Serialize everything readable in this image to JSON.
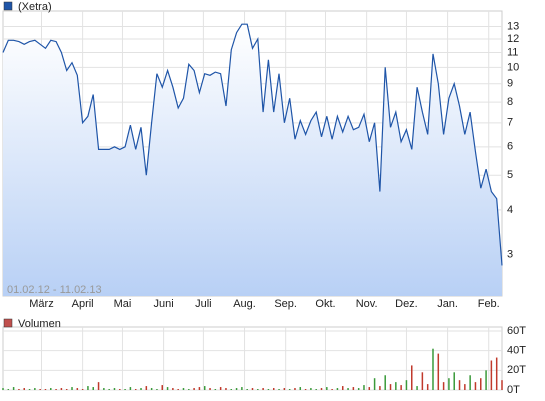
{
  "chart_data": [
    {
      "type": "line",
      "log_scale": true,
      "grid": true,
      "date_range": "01.02.12 - 11.02.13",
      "x": [
        "01.02.12",
        "05.02.12",
        "09.02.12",
        "13.02.12",
        "17.02.12",
        "21.02.12",
        "25.02.12",
        "29.02.12",
        "04.03.12",
        "08.03.12",
        "12.03.12",
        "16.03.12",
        "20.03.12",
        "24.03.12",
        "28.03.12",
        "01.04.12",
        "05.04.12",
        "09.04.12",
        "13.04.12",
        "17.04.12",
        "21.04.12",
        "25.04.12",
        "29.04.12",
        "03.05.12",
        "07.05.12",
        "11.05.12",
        "15.05.12",
        "19.05.12",
        "23.05.12",
        "27.05.12",
        "31.05.12",
        "04.06.12",
        "08.06.12",
        "12.06.12",
        "16.06.12",
        "20.06.12",
        "24.06.12",
        "28.06.12",
        "02.07.12",
        "06.07.12",
        "10.07.12",
        "14.07.12",
        "18.07.12",
        "22.07.12",
        "26.07.12",
        "30.07.12",
        "03.08.12",
        "07.08.12",
        "11.08.12",
        "15.08.12",
        "19.08.12",
        "23.08.12",
        "27.08.12",
        "31.08.12",
        "04.09.12",
        "08.09.12",
        "12.09.12",
        "16.09.12",
        "20.09.12",
        "24.09.12",
        "28.09.12",
        "02.10.12",
        "06.10.12",
        "10.10.12",
        "14.10.12",
        "18.10.12",
        "22.10.12",
        "26.10.12",
        "30.10.12",
        "03.11.12",
        "07.11.12",
        "11.11.12",
        "15.11.12",
        "19.11.12",
        "23.11.12",
        "27.11.12",
        "01.12.12",
        "05.12.12",
        "09.12.12",
        "13.12.12",
        "17.12.12",
        "21.12.12",
        "25.12.12",
        "29.12.12",
        "02.01.13",
        "06.01.13",
        "10.01.13",
        "14.01.13",
        "18.01.13",
        "22.01.13",
        "26.01.13",
        "30.01.13",
        "03.02.13",
        "07.02.13",
        "11.02.13"
      ],
      "series": [
        {
          "name": "(Xetra)",
          "color": "#1f55a8",
          "values": [
            11.0,
            11.9,
            11.9,
            11.8,
            11.6,
            11.8,
            11.9,
            11.6,
            11.3,
            11.9,
            11.8,
            11.0,
            9.8,
            10.3,
            9.5,
            7.0,
            7.3,
            8.4,
            5.9,
            5.9,
            5.9,
            6.0,
            5.9,
            6.0,
            6.9,
            5.9,
            6.8,
            5.0,
            7.0,
            9.6,
            8.8,
            9.8,
            8.8,
            7.7,
            8.2,
            10.2,
            9.8,
            8.5,
            9.6,
            9.5,
            9.7,
            9.6,
            7.8,
            11.2,
            12.5,
            13.2,
            13.2,
            11.3,
            12.0,
            7.5,
            10.5,
            7.5,
            9.6,
            7.0,
            8.2,
            6.3,
            7.1,
            6.5,
            7.1,
            7.5,
            6.4,
            7.3,
            6.3,
            7.3,
            6.6,
            7.3,
            6.7,
            6.8,
            7.4,
            6.2,
            7.0,
            4.5,
            10.0,
            6.8,
            7.5,
            6.2,
            6.7,
            5.9,
            8.8,
            7.5,
            6.5,
            10.9,
            9.0,
            6.5,
            8.2,
            9.0,
            7.8,
            6.5,
            7.5,
            5.8,
            4.6,
            5.2,
            4.5,
            4.3,
            2.8
          ]
        }
      ],
      "xlim": [
        "01.02.12",
        "11.02.13"
      ],
      "xticks": [
        {
          "value": "01.03.12",
          "label": "März"
        },
        {
          "value": "01.04.12",
          "label": "April"
        },
        {
          "value": "01.05.12",
          "label": "Mai"
        },
        {
          "value": "01.06.12",
          "label": "Juni"
        },
        {
          "value": "01.07.12",
          "label": "Juli"
        },
        {
          "value": "01.08.12",
          "label": "Aug."
        },
        {
          "value": "01.09.12",
          "label": "Sep."
        },
        {
          "value": "01.10.12",
          "label": "Okt."
        },
        {
          "value": "01.11.12",
          "label": "Nov."
        },
        {
          "value": "01.12.12",
          "label": "Dez."
        },
        {
          "value": "01.01.13",
          "label": "Jan."
        },
        {
          "value": "01.02.13",
          "label": "Feb."
        }
      ],
      "ylim": [
        2.3,
        14
      ],
      "yticks": [
        3,
        4,
        5,
        6,
        7,
        8,
        9,
        10,
        11,
        12,
        13
      ]
    },
    {
      "type": "bar",
      "grid": true,
      "up_color": "#3a9a3a",
      "down_color": "#c0392b",
      "series": [
        {
          "name": "Volumen",
          "color": "#c0504d",
          "values": [
            2,
            1,
            3,
            1,
            2,
            1,
            2,
            1,
            1,
            2,
            1,
            2,
            1,
            3,
            2,
            1,
            4,
            3,
            8,
            2,
            1,
            2,
            1,
            1,
            3,
            1,
            2,
            4,
            2,
            1,
            5,
            3,
            2,
            1,
            2,
            1,
            2,
            3,
            4,
            2,
            1,
            3,
            2,
            1,
            2,
            3,
            1,
            2,
            1,
            2,
            1,
            2,
            1,
            2,
            1,
            2,
            3,
            1,
            2,
            1,
            2,
            3,
            1,
            2,
            4,
            2,
            3,
            2,
            5,
            3,
            12,
            4,
            15,
            6,
            8,
            5,
            10,
            25,
            4,
            18,
            6,
            42,
            37,
            8,
            12,
            18,
            10,
            6,
            15,
            8,
            12,
            20,
            30,
            33,
            10
          ]
        }
      ],
      "ylim": [
        0,
        60
      ],
      "yticks": [
        {
          "value": 0,
          "label": "0T"
        },
        {
          "value": 20,
          "label": "20T"
        },
        {
          "value": 40,
          "label": "40T"
        },
        {
          "value": 60,
          "label": "60T"
        }
      ]
    }
  ]
}
